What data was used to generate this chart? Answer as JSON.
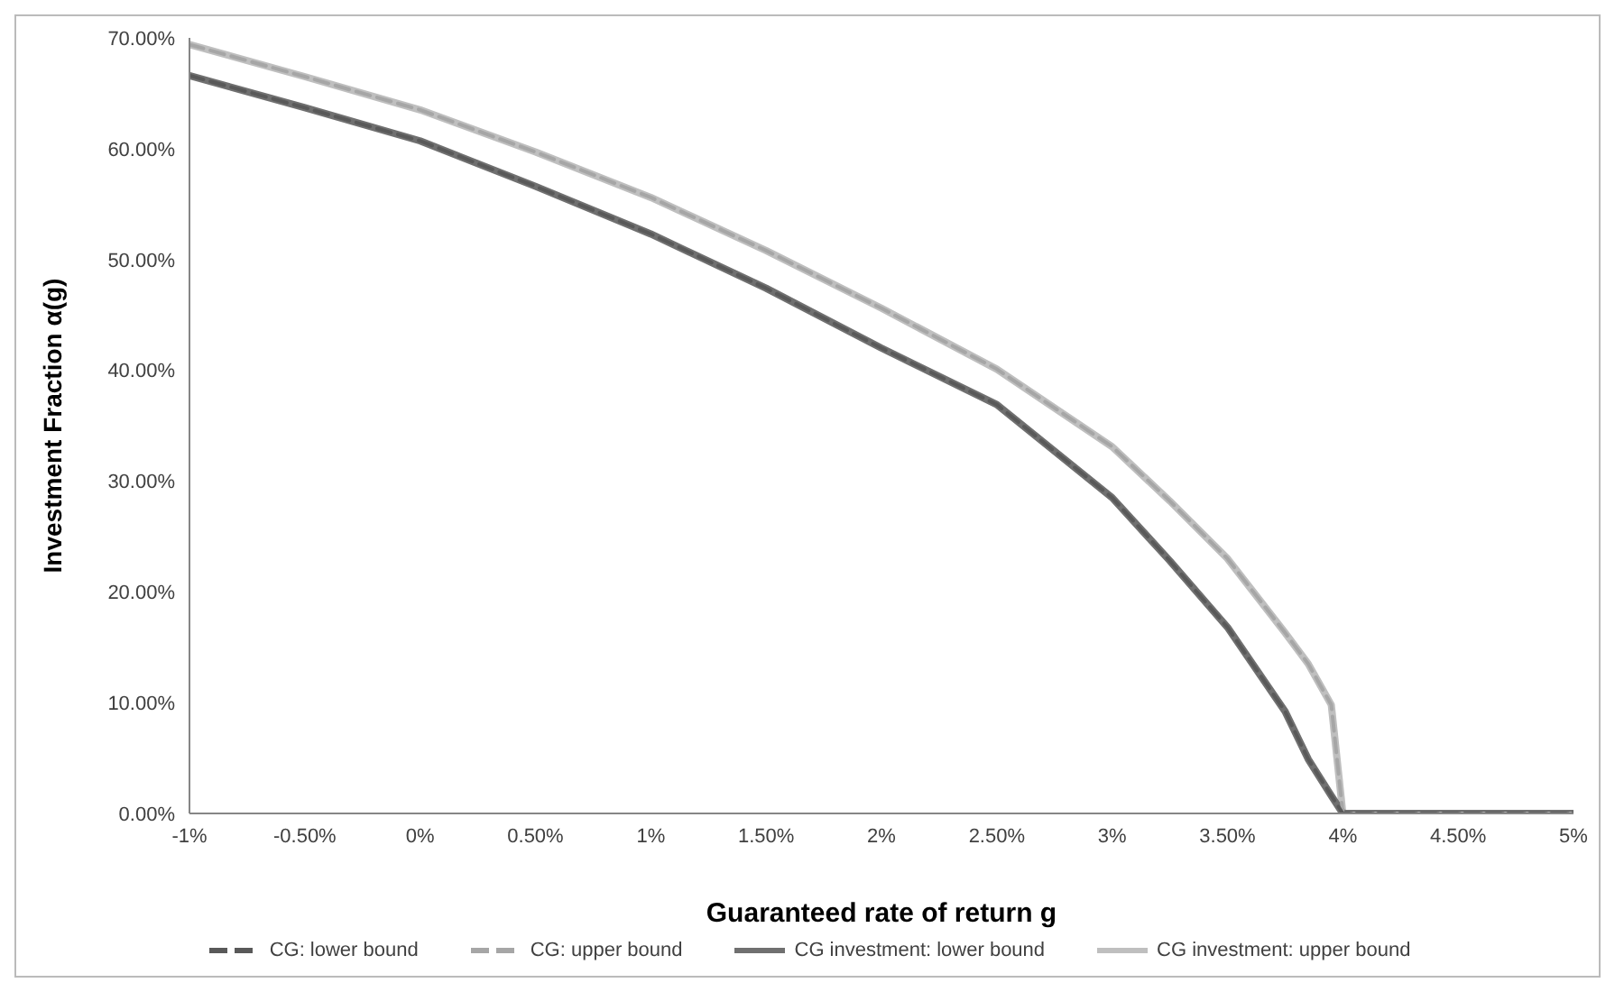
{
  "chart_data": {
    "type": "line",
    "xlabel": "Guaranteed rate of return g",
    "ylabel": "Investment Fraction α(g)",
    "x": [
      -1,
      -0.5,
      0,
      0.5,
      1,
      1.5,
      2,
      2.5,
      3,
      3.25,
      3.5,
      3.75,
      3.85,
      3.95,
      4,
      4.5,
      5
    ],
    "series": [
      {
        "name": "CG: lower bound",
        "color": "#595959",
        "line_style": "dashed",
        "values": [
          66.6,
          63.7,
          60.7,
          56.6,
          52.3,
          47.4,
          42.0,
          36.9,
          28.5,
          22.8,
          16.8,
          9.2,
          4.9,
          1.6,
          0,
          0,
          0
        ]
      },
      {
        "name": "CG: upper bound",
        "color": "#a6a6a6",
        "line_style": "dashed",
        "values": [
          69.4,
          66.5,
          63.5,
          59.7,
          55.6,
          50.8,
          45.6,
          40.1,
          33.1,
          28.2,
          23.0,
          16.3,
          13.5,
          9.8,
          0,
          0,
          0
        ]
      },
      {
        "name": "CG investment: lower bound",
        "color": "#707070",
        "line_style": "solid",
        "values": [
          66.6,
          63.7,
          60.7,
          56.6,
          52.3,
          47.4,
          42.0,
          36.9,
          28.5,
          22.8,
          16.8,
          9.2,
          4.9,
          1.6,
          0,
          0,
          0
        ]
      },
      {
        "name": "CG investment: upper bound",
        "color": "#bfbfbf",
        "line_style": "solid",
        "values": [
          69.4,
          66.5,
          63.5,
          59.7,
          55.6,
          50.8,
          45.6,
          40.1,
          33.1,
          28.2,
          23.0,
          16.3,
          13.5,
          9.8,
          0,
          0,
          0
        ]
      }
    ],
    "xlim": [
      -1,
      5
    ],
    "xticks": [
      {
        "value": -1,
        "label": "-1%"
      },
      {
        "value": -0.5,
        "label": "-0.50%"
      },
      {
        "value": 0,
        "label": "0%"
      },
      {
        "value": 0.5,
        "label": "0.50%"
      },
      {
        "value": 1,
        "label": "1%"
      },
      {
        "value": 1.5,
        "label": "1.50%"
      },
      {
        "value": 2,
        "label": "2%"
      },
      {
        "value": 2.5,
        "label": "2.50%"
      },
      {
        "value": 3,
        "label": "3%"
      },
      {
        "value": 3.5,
        "label": "3.50%"
      },
      {
        "value": 4,
        "label": "4%"
      },
      {
        "value": 4.5,
        "label": "4.50%"
      },
      {
        "value": 5,
        "label": "5%"
      }
    ],
    "ylim": [
      0,
      70
    ],
    "yticks": [
      {
        "value": 0,
        "label": "0.00%"
      },
      {
        "value": 10,
        "label": "10.00%"
      },
      {
        "value": 20,
        "label": "20.00%"
      },
      {
        "value": 30,
        "label": "30.00%"
      },
      {
        "value": 40,
        "label": "40.00%"
      },
      {
        "value": 50,
        "label": "50.00%"
      },
      {
        "value": 60,
        "label": "60.00%"
      },
      {
        "value": 70,
        "label": "70.00%"
      }
    ],
    "grid": false,
    "legend": "bottom"
  }
}
